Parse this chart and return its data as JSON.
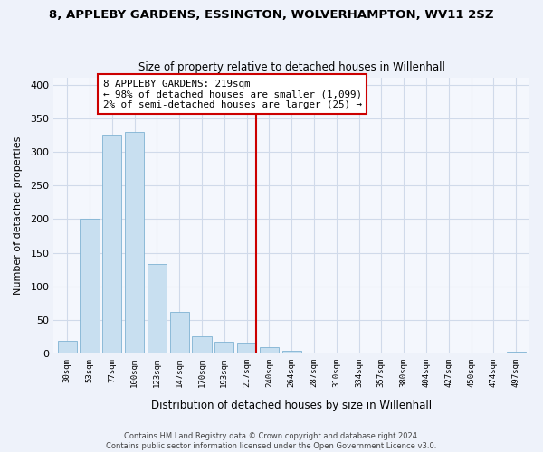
{
  "title": "8, APPLEBY GARDENS, ESSINGTON, WOLVERHAMPTON, WV11 2SZ",
  "subtitle": "Size of property relative to detached houses in Willenhall",
  "xlabel": "Distribution of detached houses by size in Willenhall",
  "ylabel": "Number of detached properties",
  "bar_color": "#c8dff0",
  "bar_edge_color": "#7fb3d3",
  "categories": [
    "30sqm",
    "53sqm",
    "77sqm",
    "100sqm",
    "123sqm",
    "147sqm",
    "170sqm",
    "193sqm",
    "217sqm",
    "240sqm",
    "264sqm",
    "287sqm",
    "310sqm",
    "334sqm",
    "357sqm",
    "380sqm",
    "404sqm",
    "427sqm",
    "450sqm",
    "474sqm",
    "497sqm"
  ],
  "values": [
    19,
    200,
    325,
    330,
    133,
    62,
    25,
    17,
    16,
    10,
    4,
    2,
    2,
    1,
    0,
    0,
    0,
    0,
    0,
    0,
    3
  ],
  "vline_color": "#cc0000",
  "annotation_title": "8 APPLEBY GARDENS: 219sqm",
  "annotation_line1": "← 98% of detached houses are smaller (1,099)",
  "annotation_line2": "2% of semi-detached houses are larger (25) →",
  "annotation_box_color": "#ffffff",
  "annotation_box_edge": "#cc0000",
  "ylim": [
    0,
    410
  ],
  "yticks": [
    0,
    50,
    100,
    150,
    200,
    250,
    300,
    350,
    400
  ],
  "footer1": "Contains HM Land Registry data © Crown copyright and database right 2024.",
  "footer2": "Contains public sector information licensed under the Open Government Licence v3.0.",
  "bg_color": "#eef2fa",
  "grid_color": "#d0daea",
  "plot_bg_color": "#f4f7fd"
}
